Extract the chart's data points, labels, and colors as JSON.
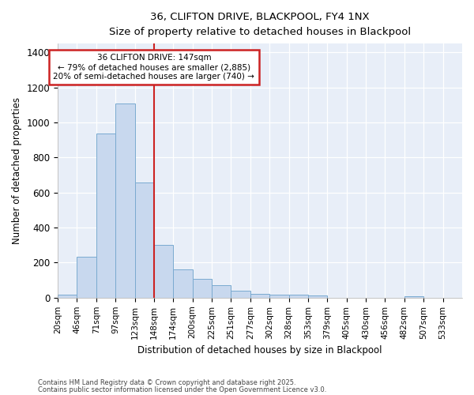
{
  "title": "36, CLIFTON DRIVE, BLACKPOOL, FY4 1NX",
  "subtitle": "Size of property relative to detached houses in Blackpool",
  "xlabel": "Distribution of detached houses by size in Blackpool",
  "ylabel": "Number of detached properties",
  "categories": [
    "20sqm",
    "46sqm",
    "71sqm",
    "97sqm",
    "123sqm",
    "148sqm",
    "174sqm",
    "200sqm",
    "225sqm",
    "251sqm",
    "277sqm",
    "302sqm",
    "328sqm",
    "353sqm",
    "379sqm",
    "405sqm",
    "430sqm",
    "456sqm",
    "482sqm",
    "507sqm",
    "533sqm"
  ],
  "values": [
    15,
    235,
    935,
    1110,
    655,
    300,
    160,
    107,
    70,
    38,
    22,
    18,
    18,
    12,
    0,
    0,
    0,
    0,
    8,
    0,
    0
  ],
  "bar_color": "#c8d8ee",
  "bar_edge_color": "#7aaad0",
  "annotation_text_line1": "36 CLIFTON DRIVE: 147sqm",
  "annotation_text_line2": "← 79% of detached houses are smaller (2,885)",
  "annotation_text_line3": "20% of semi-detached houses are larger (740) →",
  "annotation_box_facecolor": "#ffffff",
  "annotation_box_edgecolor": "#cc2222",
  "vline_color": "#cc2222",
  "footnote_line1": "Contains HM Land Registry data © Crown copyright and database right 2025.",
  "footnote_line2": "Contains public sector information licensed under the Open Government Licence v3.0.",
  "bg_color": "#ffffff",
  "plot_bg_color": "#e8eef8",
  "ylim": [
    0,
    1450
  ],
  "yticks": [
    0,
    200,
    400,
    600,
    800,
    1000,
    1200,
    1400
  ]
}
